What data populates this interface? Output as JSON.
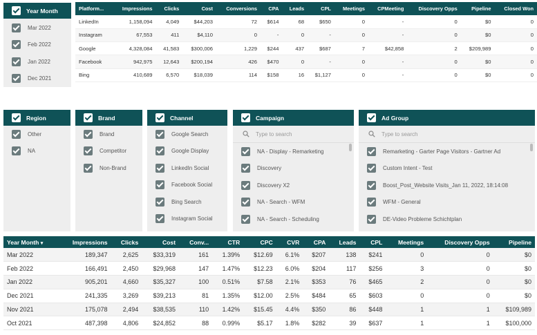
{
  "year_filter": {
    "title": "Year Month",
    "options": [
      "Mar 2022",
      "Feb 2022",
      "Jan 2022",
      "Dec 2021"
    ]
  },
  "platform_table": {
    "headers": [
      "Platform...",
      "Impressions",
      "Clicks",
      "Cost",
      "Conversions",
      "CPA",
      "Leads",
      "CPL",
      "Meetings",
      "CPMeeting",
      "Discovery Opps",
      "Pipeline",
      "Closed Won"
    ],
    "rows": [
      [
        "LinkedIn",
        "1,158,094",
        "4,049",
        "$44,203",
        "72",
        "$614",
        "68",
        "$650",
        "0",
        "-",
        "0",
        "$0",
        "0"
      ],
      [
        "Instagram",
        "67,553",
        "411",
        "$4,110",
        "0",
        "-",
        "0",
        "-",
        "0",
        "-",
        "0",
        "$0",
        "0"
      ],
      [
        "Google",
        "4,328,084",
        "41,583",
        "$300,006",
        "1,229",
        "$244",
        "437",
        "$687",
        "7",
        "$42,858",
        "2",
        "$209,989",
        "0"
      ],
      [
        "Facebook",
        "942,975",
        "12,643",
        "$200,194",
        "426",
        "$470",
        "0",
        "-",
        "0",
        "-",
        "0",
        "$0",
        "0"
      ],
      [
        "Bing",
        "410,689",
        "6,570",
        "$18,039",
        "114",
        "$158",
        "16",
        "$1,127",
        "0",
        "-",
        "0",
        "$0",
        "0"
      ]
    ]
  },
  "region_filter": {
    "title": "Region",
    "options": [
      "Other",
      "NA"
    ]
  },
  "brand_filter": {
    "title": "Brand",
    "options": [
      "Brand",
      "Competitor",
      "Non-Brand"
    ]
  },
  "channel_filter": {
    "title": "Channel",
    "options": [
      "Google Search",
      "Google Display",
      "LinkedIn Social",
      "Facebook Social",
      "Bing Search",
      "Instagram Social"
    ]
  },
  "campaign_filter": {
    "title": "Campaign",
    "search_placeholder": "Type to search",
    "options": [
      "NA - Display - Remarketing",
      "Discovery",
      "Discovery X2",
      "NA - Search - WFM",
      "NA - Search - Scheduling"
    ]
  },
  "adgroup_filter": {
    "title": "Ad Group",
    "search_placeholder": "Type to search",
    "options": [
      "Remarketing - Garter Page Visitors - Gartner Ad",
      "Custom Intent - Test",
      "Boost_Post_Website Visits_Jan 11, 2022, 18:14:08",
      "WFM - General",
      "DE-Video Probleme Schichtplan"
    ]
  },
  "monthly_table": {
    "headers": [
      "Year Month",
      "Impressions",
      "Clicks",
      "Cost",
      "Conv...",
      "CTR",
      "CPC",
      "CVR",
      "CPA",
      "Leads",
      "CPL",
      "Meetings",
      "Discovery Opps",
      "Pipeline"
    ],
    "sort_indicator": "▾",
    "rows": [
      [
        "Mar 2022",
        "189,347",
        "2,625",
        "$33,319",
        "161",
        "1.39%",
        "$12.69",
        "6.1%",
        "$207",
        "138",
        "$241",
        "0",
        "0",
        "$0"
      ],
      [
        "Feb 2022",
        "166,491",
        "2,450",
        "$29,968",
        "147",
        "1.47%",
        "$12.23",
        "6.0%",
        "$204",
        "117",
        "$256",
        "3",
        "0",
        "$0"
      ],
      [
        "Jan 2022",
        "905,201",
        "4,660",
        "$35,327",
        "100",
        "0.51%",
        "$7.58",
        "2.1%",
        "$353",
        "76",
        "$465",
        "2",
        "0",
        "$0"
      ],
      [
        "Dec 2021",
        "241,335",
        "3,269",
        "$39,213",
        "81",
        "1.35%",
        "$12.00",
        "2.5%",
        "$484",
        "65",
        "$603",
        "0",
        "0",
        "$0"
      ],
      [
        "Nov 2021",
        "175,078",
        "2,494",
        "$38,535",
        "110",
        "1.42%",
        "$15.45",
        "4.4%",
        "$350",
        "86",
        "$448",
        "1",
        "1",
        "$109,989"
      ],
      [
        "Oct 2021",
        "487,398",
        "4,806",
        "$24,852",
        "88",
        "0.99%",
        "$5.17",
        "1.8%",
        "$282",
        "39",
        "$637",
        "1",
        "1",
        "$100,000"
      ]
    ]
  }
}
